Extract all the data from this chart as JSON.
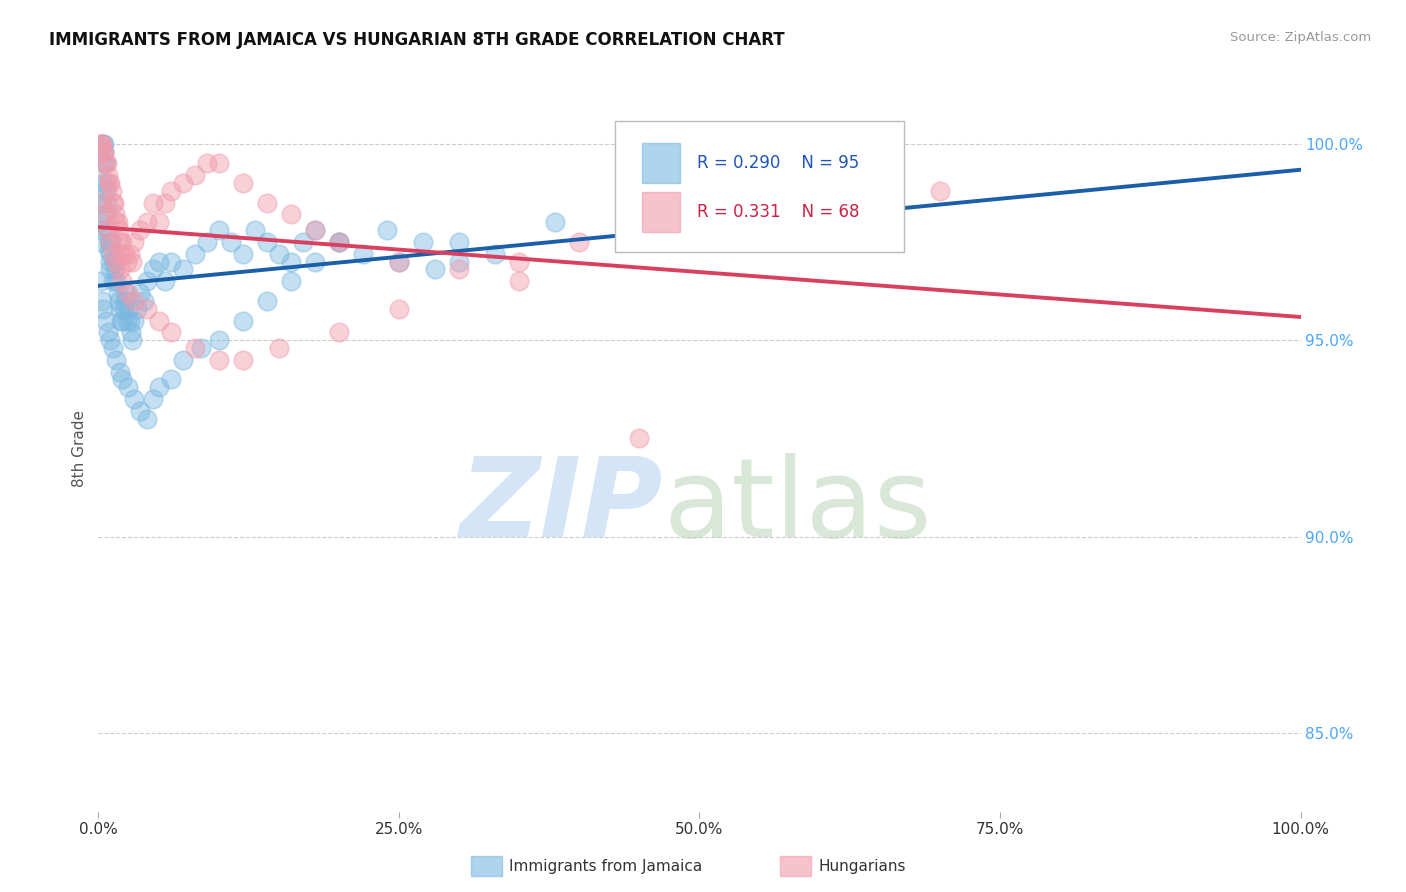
{
  "title": "IMMIGRANTS FROM JAMAICA VS HUNGARIAN 8TH GRADE CORRELATION CHART",
  "source": "Source: ZipAtlas.com",
  "ylabel": "8th Grade",
  "right_yticks": [
    100.0,
    95.0,
    90.0,
    85.0
  ],
  "legend_blue_label": "Immigrants from Jamaica",
  "legend_pink_label": "Hungarians",
  "R_blue": 0.29,
  "N_blue": 95,
  "R_pink": 0.331,
  "N_pink": 68,
  "color_blue": "#7bb8e0",
  "color_pink": "#f09aaa",
  "color_blue_line": "#1a5fa8",
  "color_pink_line": "#d94060",
  "x_min": 0.0,
  "x_max": 100.0,
  "y_min": 83.0,
  "y_max": 101.5,
  "blue_x": [
    0.1,
    0.15,
    0.2,
    0.25,
    0.3,
    0.35,
    0.4,
    0.45,
    0.5,
    0.55,
    0.6,
    0.65,
    0.7,
    0.75,
    0.8,
    0.85,
    0.9,
    0.95,
    1.0,
    1.0,
    1.1,
    1.2,
    1.3,
    1.4,
    1.5,
    1.6,
    1.7,
    1.8,
    1.9,
    2.0,
    2.1,
    2.2,
    2.3,
    2.4,
    2.5,
    2.6,
    2.7,
    2.8,
    3.0,
    3.2,
    3.5,
    3.8,
    4.0,
    4.5,
    5.0,
    5.5,
    6.0,
    7.0,
    8.0,
    9.0,
    10.0,
    11.0,
    12.0,
    13.0,
    14.0,
    15.0,
    16.0,
    17.0,
    18.0,
    20.0,
    22.0,
    25.0,
    28.0,
    30.0,
    0.2,
    0.3,
    0.4,
    0.6,
    0.8,
    1.0,
    1.2,
    1.5,
    1.8,
    2.0,
    2.5,
    3.0,
    3.5,
    4.0,
    4.5,
    5.0,
    6.0,
    7.0,
    8.5,
    10.0,
    12.0,
    14.0,
    16.0,
    18.0,
    20.0,
    24.0,
    27.0,
    30.0,
    33.0,
    38.0,
    45.0
  ],
  "blue_y": [
    97.5,
    98.0,
    97.8,
    98.5,
    99.0,
    99.5,
    100.0,
    100.0,
    99.8,
    99.5,
    99.0,
    98.8,
    98.5,
    98.2,
    97.8,
    97.5,
    97.3,
    97.0,
    96.8,
    97.2,
    97.5,
    96.5,
    97.0,
    96.8,
    96.5,
    96.2,
    96.0,
    95.8,
    95.5,
    95.5,
    95.8,
    96.0,
    96.2,
    95.5,
    95.8,
    95.5,
    95.2,
    95.0,
    95.5,
    95.8,
    96.2,
    96.0,
    96.5,
    96.8,
    97.0,
    96.5,
    97.0,
    96.8,
    97.2,
    97.5,
    97.8,
    97.5,
    97.2,
    97.8,
    97.5,
    97.2,
    97.0,
    97.5,
    97.8,
    97.5,
    97.2,
    97.0,
    96.8,
    97.5,
    96.5,
    96.0,
    95.8,
    95.5,
    95.2,
    95.0,
    94.8,
    94.5,
    94.2,
    94.0,
    93.8,
    93.5,
    93.2,
    93.0,
    93.5,
    93.8,
    94.0,
    94.5,
    94.8,
    95.0,
    95.5,
    96.0,
    96.5,
    97.0,
    97.5,
    97.8,
    97.5,
    97.0,
    97.2,
    98.0,
    98.5
  ],
  "pink_x": [
    0.1,
    0.2,
    0.3,
    0.4,
    0.5,
    0.6,
    0.7,
    0.8,
    0.9,
    1.0,
    1.1,
    1.2,
    1.3,
    1.4,
    1.5,
    1.6,
    1.7,
    1.8,
    1.9,
    2.0,
    2.2,
    2.4,
    2.6,
    2.8,
    3.0,
    3.5,
    4.0,
    4.5,
    5.0,
    5.5,
    6.0,
    7.0,
    8.0,
    9.0,
    10.0,
    12.0,
    14.0,
    16.0,
    18.0,
    20.0,
    25.0,
    30.0,
    35.0,
    40.0,
    50.0,
    60.0,
    70.0,
    0.3,
    0.5,
    0.8,
    1.0,
    1.2,
    1.5,
    1.8,
    2.0,
    2.5,
    3.0,
    4.0,
    5.0,
    6.0,
    8.0,
    10.0,
    12.0,
    15.0,
    20.0,
    25.0,
    35.0,
    45.0
  ],
  "pink_y": [
    100.0,
    100.0,
    100.0,
    99.8,
    99.8,
    99.5,
    99.5,
    99.2,
    99.0,
    99.0,
    98.8,
    98.5,
    98.5,
    98.2,
    98.0,
    98.0,
    97.8,
    97.5,
    97.2,
    97.5,
    97.2,
    97.0,
    97.2,
    97.0,
    97.5,
    97.8,
    98.0,
    98.5,
    98.0,
    98.5,
    98.8,
    99.0,
    99.2,
    99.5,
    99.5,
    99.0,
    98.5,
    98.2,
    97.8,
    97.5,
    97.0,
    96.8,
    97.0,
    97.5,
    98.0,
    98.5,
    98.8,
    98.5,
    98.2,
    97.8,
    97.5,
    97.2,
    97.0,
    96.8,
    96.5,
    96.2,
    96.0,
    95.8,
    95.5,
    95.2,
    94.8,
    94.5,
    94.5,
    94.8,
    95.2,
    95.8,
    96.5,
    92.5
  ]
}
